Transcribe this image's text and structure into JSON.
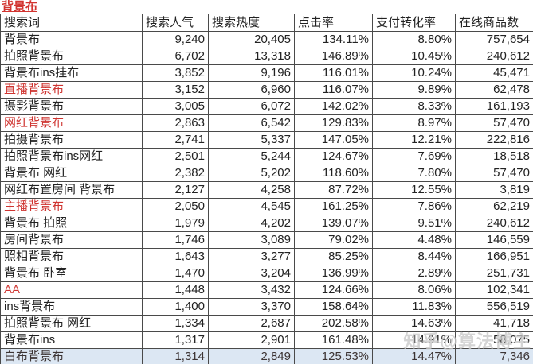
{
  "title": "背景布",
  "watermark": "知乎@算法博主",
  "columns": [
    "搜索词",
    "搜索人气",
    "搜索热度",
    "点击率",
    "支付转化率",
    "在线商品数"
  ],
  "column_keys": [
    "search-popularity",
    "search-heat",
    "click-rate",
    "pay-conversion-rate",
    "online-product-count"
  ],
  "rows": [
    {
      "term": "背景布",
      "red": false,
      "highlight": false,
      "values": [
        "9,240",
        "20,405",
        "134.11%",
        "8.80%",
        "757,654"
      ]
    },
    {
      "term": "拍照背景布",
      "red": false,
      "highlight": false,
      "values": [
        "6,702",
        "13,318",
        "146.89%",
        "10.45%",
        "240,612"
      ]
    },
    {
      "term": "背景布ins挂布",
      "red": false,
      "highlight": false,
      "values": [
        "3,852",
        "9,196",
        "116.01%",
        "10.24%",
        "45,471"
      ]
    },
    {
      "term": "直播背景布",
      "red": true,
      "highlight": false,
      "values": [
        "3,152",
        "6,960",
        "116.07%",
        "9.89%",
        "62,478"
      ]
    },
    {
      "term": "摄影背景布",
      "red": false,
      "highlight": false,
      "values": [
        "3,005",
        "6,072",
        "142.02%",
        "8.33%",
        "161,193"
      ]
    },
    {
      "term": "网红背景布",
      "red": true,
      "highlight": false,
      "values": [
        "2,863",
        "6,542",
        "129.83%",
        "8.97%",
        "57,470"
      ]
    },
    {
      "term": "拍摄背景布",
      "red": false,
      "highlight": false,
      "values": [
        "2,741",
        "5,337",
        "147.05%",
        "12.21%",
        "222,816"
      ]
    },
    {
      "term": "拍照背景布ins网红",
      "red": false,
      "highlight": false,
      "values": [
        "2,501",
        "5,244",
        "124.67%",
        "7.69%",
        "18,518"
      ]
    },
    {
      "term": "背景布 网红",
      "red": false,
      "highlight": false,
      "values": [
        "2,382",
        "5,202",
        "118.60%",
        "7.80%",
        "57,470"
      ]
    },
    {
      "term": "网红布置房间 背景布",
      "red": false,
      "highlight": false,
      "values": [
        "2,127",
        "4,258",
        "87.72%",
        "12.55%",
        "3,819"
      ]
    },
    {
      "term": "主播背景布",
      "red": true,
      "highlight": false,
      "values": [
        "2,050",
        "4,545",
        "161.25%",
        "7.86%",
        "62,219"
      ]
    },
    {
      "term": "背景布 拍照",
      "red": false,
      "highlight": false,
      "values": [
        "1,979",
        "4,202",
        "139.07%",
        "9.51%",
        "240,612"
      ]
    },
    {
      "term": "房间背景布",
      "red": false,
      "highlight": false,
      "values": [
        "1,746",
        "3,089",
        "79.02%",
        "4.48%",
        "146,559"
      ]
    },
    {
      "term": "照相背景布",
      "red": false,
      "highlight": false,
      "values": [
        "1,643",
        "3,277",
        "85.25%",
        "8.44%",
        "166,951"
      ]
    },
    {
      "term": "背景布 卧室",
      "red": false,
      "highlight": false,
      "values": [
        "1,470",
        "3,204",
        "136.99%",
        "2.89%",
        "251,731"
      ]
    },
    {
      "term": "AA",
      "red": true,
      "highlight": false,
      "values": [
        "1,448",
        "3,432",
        "124.66%",
        "8.06%",
        "102,341"
      ]
    },
    {
      "term": "ins背景布",
      "red": false,
      "highlight": false,
      "values": [
        "1,400",
        "3,370",
        "158.64%",
        "11.83%",
        "556,519"
      ]
    },
    {
      "term": "拍照背景布 网红",
      "red": false,
      "highlight": false,
      "values": [
        "1,334",
        "2,687",
        "202.58%",
        "14.63%",
        "41,718"
      ]
    },
    {
      "term": "背景布ins",
      "red": false,
      "highlight": false,
      "values": [
        "1,317",
        "2,901",
        "161.48%",
        "14.91%",
        "58,075"
      ]
    },
    {
      "term": "白布背景布",
      "red": false,
      "highlight": true,
      "values": [
        "1,314",
        "2,849",
        "125.53%",
        "14.47%",
        "7,346"
      ]
    }
  ],
  "colors": {
    "accent_red": "#cf3430",
    "grid_border": "#4a4a4a",
    "highlight_row_bg": "#dce7f3",
    "watermark_gray": "#cbcbcb"
  }
}
